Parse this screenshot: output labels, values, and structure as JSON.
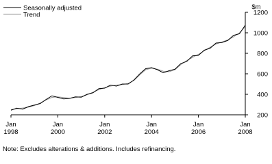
{
  "chart_data": {
    "type": "line",
    "x": [
      1998,
      1998.25,
      1998.5,
      1998.75,
      1999,
      1999.25,
      1999.5,
      1999.75,
      2000,
      2000.25,
      2000.5,
      2000.75,
      2001,
      2001.25,
      2001.5,
      2001.75,
      2002,
      2002.25,
      2002.5,
      2002.75,
      2003,
      2003.25,
      2003.5,
      2003.75,
      2004,
      2004.25,
      2004.5,
      2004.75,
      2005,
      2005.25,
      2005.5,
      2005.75,
      2006,
      2006.25,
      2006.5,
      2006.75,
      2007,
      2007.25,
      2007.5,
      2007.75,
      2008
    ],
    "series": [
      {
        "name": "Seasonally adjusted",
        "color": "#000000",
        "values": [
          245,
          265,
          255,
          280,
          295,
          310,
          350,
          385,
          370,
          355,
          360,
          375,
          372,
          400,
          415,
          455,
          460,
          490,
          480,
          500,
          500,
          540,
          600,
          650,
          660,
          640,
          610,
          630,
          645,
          700,
          720,
          775,
          780,
          830,
          850,
          900,
          905,
          925,
          975,
          990,
          1075
        ]
      },
      {
        "name": "Trend",
        "color": "#999999",
        "values": [
          250,
          258,
          266,
          275,
          290,
          315,
          345,
          370,
          375,
          368,
          362,
          368,
          378,
          395,
          420,
          445,
          465,
          480,
          490,
          495,
          505,
          535,
          590,
          640,
          655,
          645,
          625,
          620,
          640,
          690,
          730,
          760,
          790,
          825,
          860,
          890,
          910,
          930,
          960,
          1000,
          1060
        ]
      }
    ],
    "y_label": "$m",
    "ylim": [
      200,
      1200
    ],
    "yticks": [
      200,
      400,
      600,
      800,
      1000,
      1200
    ],
    "xlim": [
      1998,
      2008
    ],
    "xticks": [
      {
        "value": 1998,
        "label": "Jan 1998"
      },
      {
        "value": 2000,
        "label": "Jan 2000"
      },
      {
        "value": 2002,
        "label": "Jan 2002"
      },
      {
        "value": 2004,
        "label": "Jan 2004"
      },
      {
        "value": 2006,
        "label": "Jan 2006"
      },
      {
        "value": 2008,
        "label": "Jan 2008"
      }
    ],
    "legend": "top-left",
    "note": "Note: Excludes alterations & additions. Includes refinancing."
  }
}
